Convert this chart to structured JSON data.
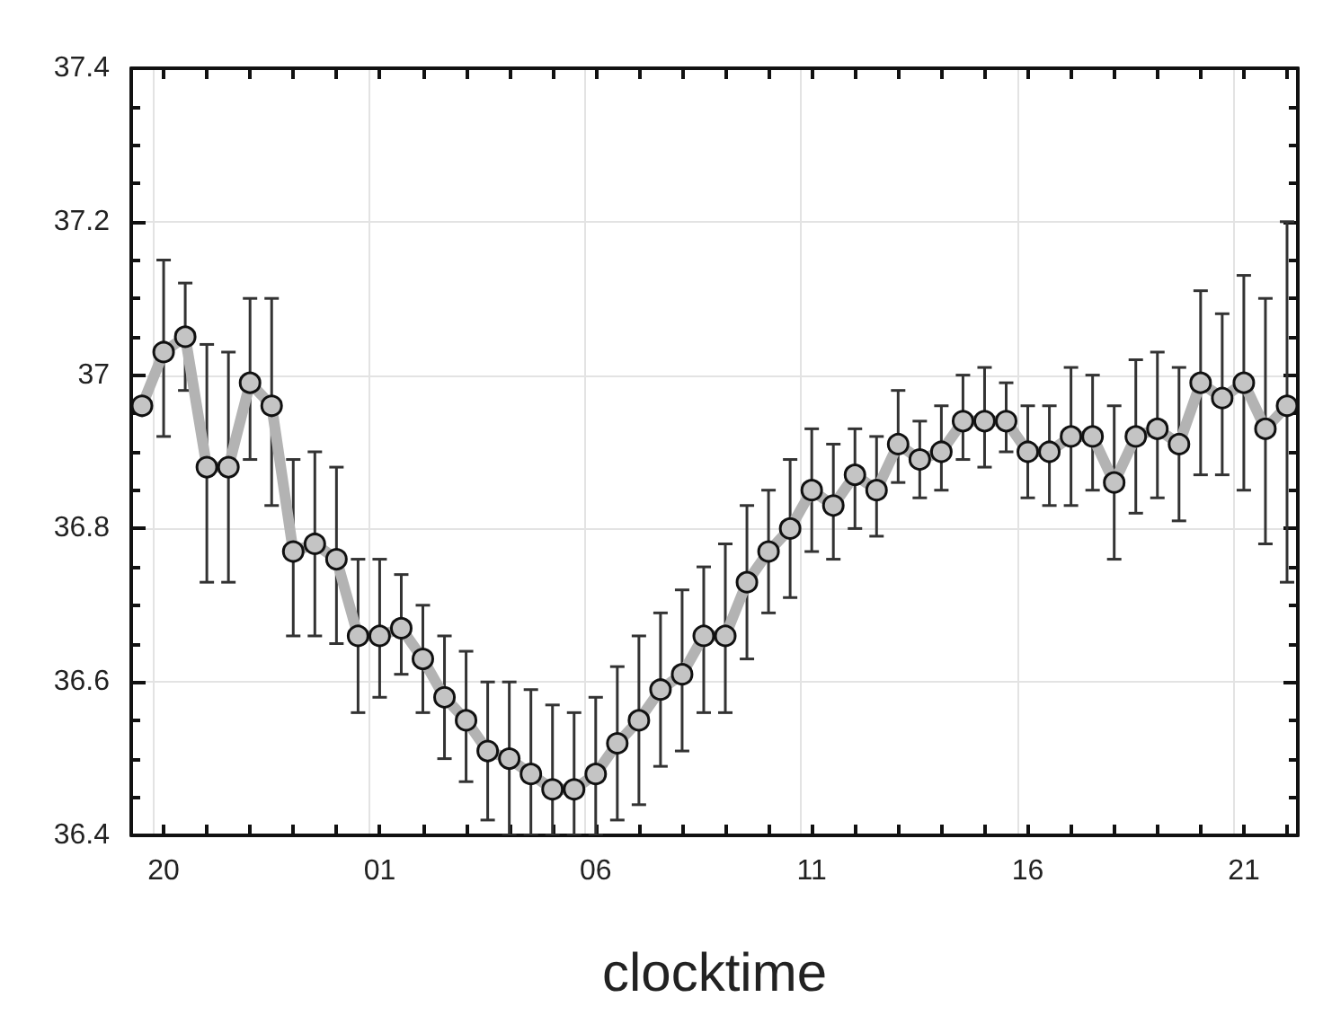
{
  "chart_data": {
    "type": "line",
    "xlabel": "clocktime",
    "categories": [
      null,
      "20",
      null,
      null,
      null,
      null,
      null,
      null,
      null,
      null,
      null,
      "01",
      null,
      null,
      null,
      null,
      null,
      null,
      null,
      null,
      null,
      "06",
      null,
      null,
      null,
      null,
      null,
      null,
      null,
      null,
      null,
      "11",
      null,
      null,
      null,
      null,
      null,
      null,
      null,
      null,
      null,
      "16",
      null,
      null,
      null,
      null,
      null,
      null,
      null,
      null,
      null,
      "21",
      null,
      null
    ],
    "series": [
      {
        "color": "#b3b3b3",
        "values": [
          36.96,
          37.03,
          37.05,
          36.88,
          36.88,
          36.99,
          36.96,
          36.77,
          36.78,
          36.76,
          36.66,
          36.66,
          36.67,
          36.63,
          36.58,
          36.55,
          36.51,
          36.5,
          36.48,
          36.46,
          36.46,
          36.48,
          36.52,
          36.55,
          36.59,
          36.61,
          36.66,
          36.66,
          36.73,
          36.77,
          36.8,
          36.85,
          36.83,
          36.87,
          36.85,
          36.91,
          36.89,
          36.9,
          36.94,
          36.94,
          36.94,
          36.9,
          36.9,
          36.92,
          36.92,
          36.86,
          36.92,
          36.93,
          36.91,
          36.99,
          36.97,
          36.99,
          36.93,
          36.96
        ],
        "errors": [
          null,
          [
            36.92,
            37.15
          ],
          [
            36.98,
            37.12
          ],
          [
            36.73,
            37.04
          ],
          [
            36.73,
            37.03
          ],
          [
            36.89,
            37.1
          ],
          [
            36.83,
            37.1
          ],
          [
            36.66,
            36.89
          ],
          [
            36.66,
            36.9
          ],
          [
            36.65,
            36.88
          ],
          [
            36.56,
            36.76
          ],
          [
            36.58,
            36.76
          ],
          [
            36.61,
            36.74
          ],
          [
            36.56,
            36.7
          ],
          [
            36.5,
            36.66
          ],
          [
            36.47,
            36.64
          ],
          [
            36.42,
            36.6
          ],
          [
            36.4,
            36.6
          ],
          [
            36.4,
            36.59
          ],
          [
            36.4,
            36.57
          ],
          [
            36.4,
            36.56
          ],
          [
            36.4,
            36.58
          ],
          [
            36.42,
            36.62
          ],
          [
            36.44,
            36.66
          ],
          [
            36.49,
            36.69
          ],
          [
            36.51,
            36.72
          ],
          [
            36.56,
            36.75
          ],
          [
            36.56,
            36.78
          ],
          [
            36.63,
            36.83
          ],
          [
            36.69,
            36.85
          ],
          [
            36.71,
            36.89
          ],
          [
            36.77,
            36.93
          ],
          [
            36.76,
            36.91
          ],
          [
            36.8,
            36.93
          ],
          [
            36.79,
            36.92
          ],
          [
            36.86,
            36.98
          ],
          [
            36.84,
            36.94
          ],
          [
            36.85,
            36.96
          ],
          [
            36.89,
            37
          ],
          [
            36.88,
            37.01
          ],
          [
            36.9,
            36.99
          ],
          [
            36.84,
            36.96
          ],
          [
            36.83,
            36.96
          ],
          [
            36.83,
            37.01
          ],
          [
            36.85,
            37
          ],
          [
            36.76,
            36.96
          ],
          [
            36.82,
            37.02
          ],
          [
            36.84,
            37.03
          ],
          [
            36.81,
            37.01
          ],
          [
            36.87,
            37.11
          ],
          [
            36.87,
            37.08
          ],
          [
            36.85,
            37.13
          ],
          [
            36.78,
            37.1
          ],
          [
            36.73,
            37.2
          ]
        ]
      }
    ],
    "ylim": [
      36.4,
      37.4
    ],
    "yticks": [
      36.4,
      36.6,
      36.8,
      37,
      37.2,
      37.4
    ],
    "grid": true,
    "marker": "circle",
    "line_style": "solid"
  }
}
